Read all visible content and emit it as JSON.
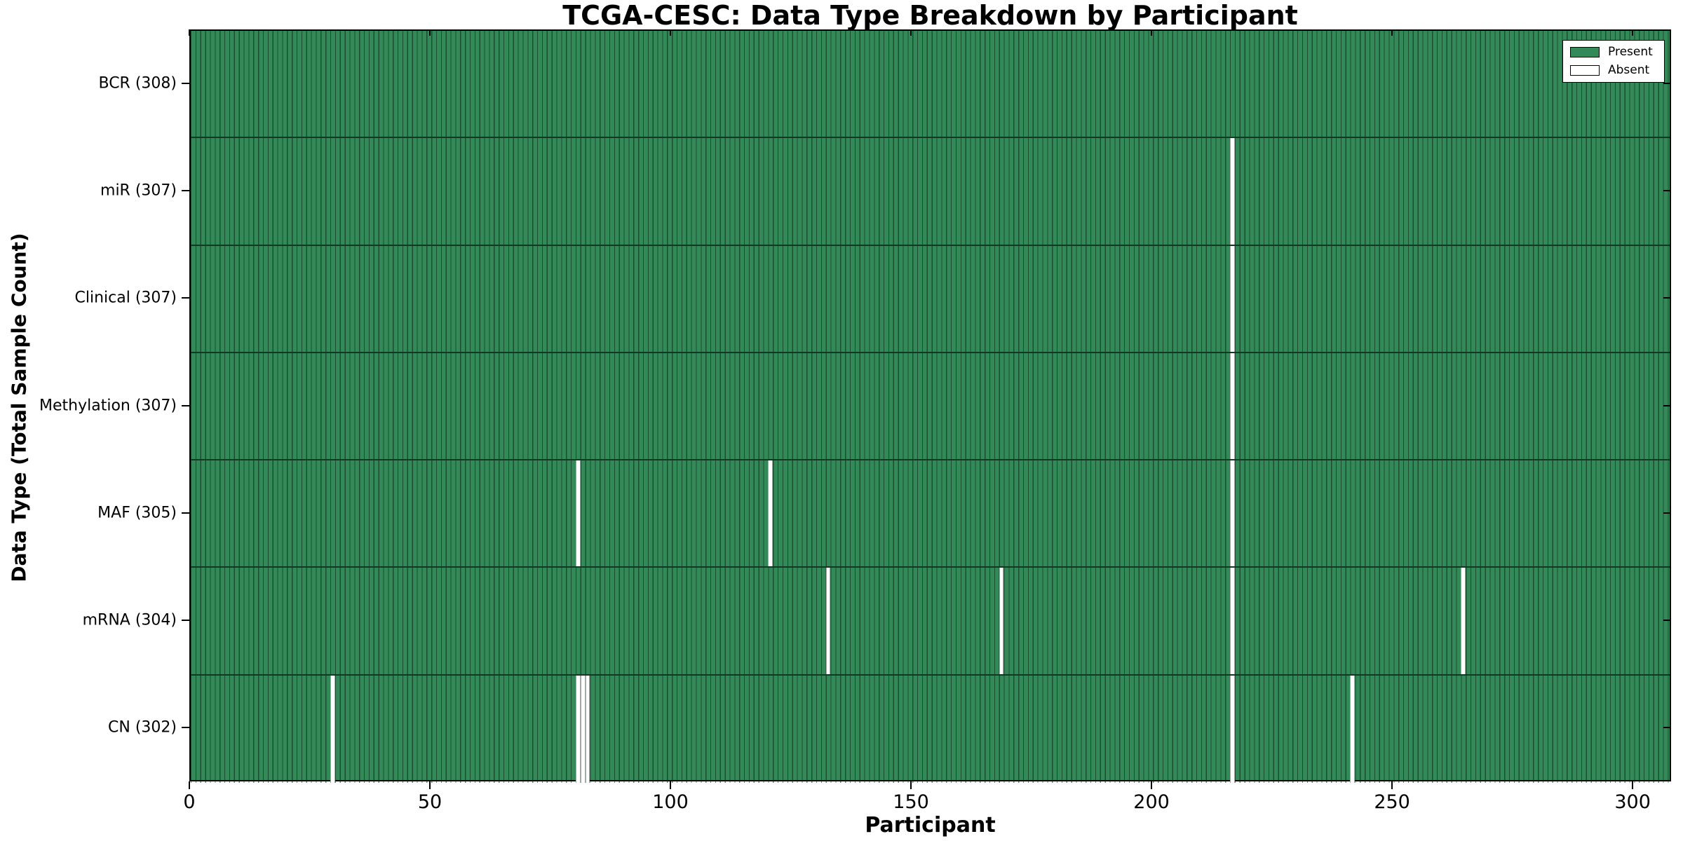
{
  "chart_data": {
    "type": "heatmap",
    "title": "TCGA-CESC: Data Type Breakdown by Participant",
    "xlabel": "Participant",
    "ylabel": "Data Type (Total Sample Count)",
    "x_ticks": [
      0,
      50,
      100,
      150,
      200,
      250,
      300
    ],
    "xlim": [
      0,
      308
    ],
    "n_participants": 308,
    "grid": false,
    "legend_position": "upper right",
    "rows": [
      {
        "label": "BCR",
        "display": "BCR (308)",
        "total": 308,
        "absent": []
      },
      {
        "label": "miR",
        "display": "miR (307)",
        "total": 307,
        "absent": [
          216
        ]
      },
      {
        "label": "Clinical",
        "display": "Clinical (307)",
        "total": 307,
        "absent": [
          216
        ]
      },
      {
        "label": "Methylation",
        "display": "Methylation (307)",
        "total": 307,
        "absent": [
          216
        ]
      },
      {
        "label": "MAF",
        "display": "MAF (305)",
        "total": 305,
        "absent": [
          80,
          120,
          216
        ]
      },
      {
        "label": "mRNA",
        "display": "mRNA (304)",
        "total": 304,
        "absent": [
          132,
          168,
          216,
          264
        ]
      },
      {
        "label": "CN",
        "display": "CN (302)",
        "total": 302,
        "absent": [
          29,
          80,
          81,
          82,
          216,
          241
        ]
      }
    ],
    "legend": [
      {
        "label": "Present",
        "color": "#338a58"
      },
      {
        "label": "Absent",
        "color": "#ffffff"
      }
    ],
    "colors": {
      "present": "#338a58",
      "absent": "#ffffff",
      "bar_edge": "#082616",
      "plot_border": "#000000"
    }
  }
}
